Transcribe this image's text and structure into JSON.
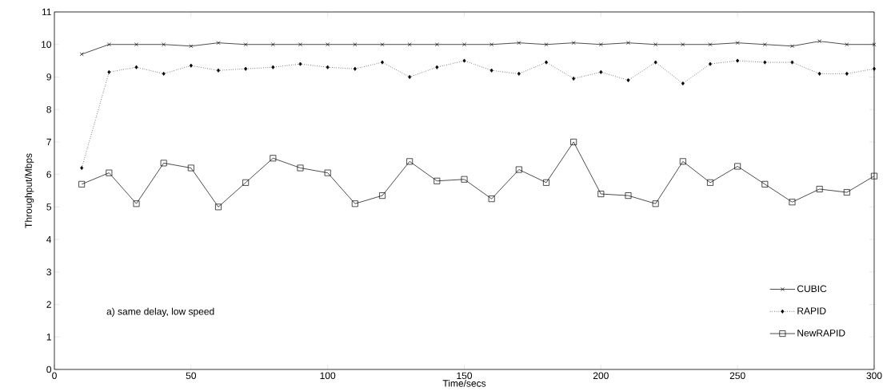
{
  "chart_data": {
    "type": "line",
    "xlabel": "Time/secs",
    "ylabel": "Throughput/Mbps",
    "x": [
      10,
      20,
      30,
      40,
      50,
      60,
      70,
      80,
      90,
      100,
      110,
      120,
      130,
      140,
      150,
      160,
      170,
      180,
      190,
      200,
      210,
      220,
      230,
      240,
      250,
      260,
      270,
      280,
      290,
      300
    ],
    "series": [
      {
        "name": "CUBIC",
        "color": "#000000",
        "marker": "cross",
        "line_style": "solid",
        "values": [
          9.7,
          10,
          10,
          10,
          9.95,
          10.05,
          10,
          10,
          10,
          10,
          10,
          10,
          10,
          10,
          10,
          10,
          10.05,
          10,
          10.05,
          10,
          10.05,
          10,
          10,
          10,
          10.05,
          10,
          9.95,
          10.1,
          10,
          10
        ]
      },
      {
        "name": "RAPID",
        "color": "#000000",
        "marker": "diamond",
        "line_style": "dotted",
        "values": [
          6.2,
          9.15,
          9.3,
          9.1,
          9.35,
          9.2,
          9.25,
          9.3,
          9.4,
          9.3,
          9.25,
          9.45,
          9.0,
          9.3,
          9.5,
          9.2,
          9.1,
          9.45,
          8.95,
          9.15,
          8.9,
          9.45,
          8.8,
          9.4,
          9.5,
          9.45,
          9.45,
          9.1,
          9.1,
          9.25
        ]
      },
      {
        "name": "NewRAPID",
        "color": "#000000",
        "marker": "square",
        "line_style": "solid",
        "values": [
          5.7,
          6.05,
          5.1,
          6.35,
          6.2,
          5.0,
          5.75,
          6.5,
          6.2,
          6.05,
          5.1,
          5.35,
          6.4,
          5.8,
          5.85,
          5.25,
          6.15,
          5.75,
          7.0,
          5.4,
          5.35,
          5.1,
          6.4,
          5.75,
          6.25,
          5.7,
          5.15,
          5.55,
          5.45,
          5.95
        ]
      }
    ],
    "xlim": [
      0,
      300
    ],
    "ylim": [
      0,
      11
    ],
    "xticks": [
      0,
      50,
      100,
      150,
      200,
      250,
      300
    ],
    "yticks": [
      0,
      1,
      2,
      3,
      4,
      5,
      6,
      7,
      8,
      9,
      10,
      11
    ],
    "annotations": [
      "a) same delay, low speed"
    ],
    "legend": "bottom right",
    "grid": false
  }
}
